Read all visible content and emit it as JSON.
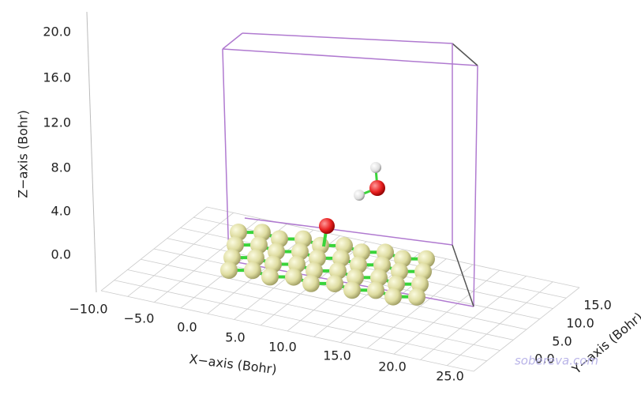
{
  "z_axis": {
    "label": "Z−axis (Bohr)",
    "ticks": [
      "20.0",
      "16.0",
      "12.0",
      "8.0",
      "4.0",
      "0.0"
    ]
  },
  "x_axis": {
    "label": "X−axis (Bohr)",
    "ticks": [
      "−10.0",
      "−5.0",
      "0.0",
      "5.0",
      "10.0",
      "15.0",
      "20.0",
      "25.0"
    ]
  },
  "y_axis": {
    "label": "Y−axis (Bohr)",
    "ticks": [
      "15.0",
      "10.0",
      "5.0",
      "0.0"
    ]
  },
  "watermark": "sobereva.com"
}
